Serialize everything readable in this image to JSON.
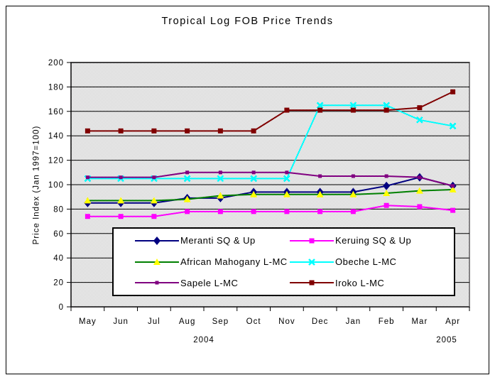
{
  "chart_data": {
    "type": "line",
    "title": "Tropical Log FOB Price Trends",
    "ylabel": "Price Index (Jan 1997=100)",
    "xlabel": "",
    "categories": [
      "May",
      "Jun",
      "Jul",
      "Aug",
      "Sep",
      "Oct",
      "Nov",
      "Dec",
      "Jan",
      "Feb",
      "Mar",
      "Apr"
    ],
    "year_labels": [
      "2004",
      "2005"
    ],
    "ylim": [
      0,
      200
    ],
    "ytick_step": 20,
    "grid": true,
    "legend_position": "bottom-center-overlay",
    "series": [
      {
        "name": "Meranti SQ & Up",
        "color": "#000080",
        "marker": "diamond",
        "marker_color": "#000080",
        "values": [
          85,
          85,
          85,
          89,
          89,
          94,
          94,
          94,
          94,
          99,
          106,
          99
        ]
      },
      {
        "name": "Keruing SQ & Up",
        "color": "#FF00FF",
        "marker": "square",
        "marker_color": "#FF00FF",
        "values": [
          74,
          74,
          74,
          78,
          78,
          78,
          78,
          78,
          78,
          83,
          82,
          79
        ]
      },
      {
        "name": "African Mahogany L-MC",
        "color": "#008000",
        "marker": "triangle",
        "marker_color": "#FFFF00",
        "values": [
          87,
          87,
          87,
          88,
          91,
          92,
          92,
          92,
          92,
          93,
          95,
          96
        ]
      },
      {
        "name": "Obeche L-MC",
        "color": "#00FFFF",
        "marker": "x",
        "marker_color": "#00FFFF",
        "values": [
          105,
          105,
          105,
          105,
          105,
          105,
          105,
          165,
          165,
          165,
          153,
          148
        ]
      },
      {
        "name": "Sapele L-MC",
        "color": "#800080",
        "marker": "square-small",
        "marker_color": "#800080",
        "values": [
          106,
          106,
          106,
          110,
          110,
          110,
          110,
          107,
          107,
          107,
          106,
          99
        ]
      },
      {
        "name": "Iroko L-MC",
        "color": "#800000",
        "marker": "square",
        "marker_color": "#800000",
        "values": [
          144,
          144,
          144,
          144,
          144,
          144,
          161,
          161,
          161,
          161,
          163,
          176
        ]
      }
    ]
  },
  "colors": {
    "plot_bg_light": "#ffffff",
    "plot_bg_dark": "#c6c6c6",
    "plot_border": "#848284",
    "gridline": "#000000",
    "axis": "#000000",
    "legend_bg": "#ffffff",
    "legend_border": "#000000",
    "text": "#000000"
  }
}
